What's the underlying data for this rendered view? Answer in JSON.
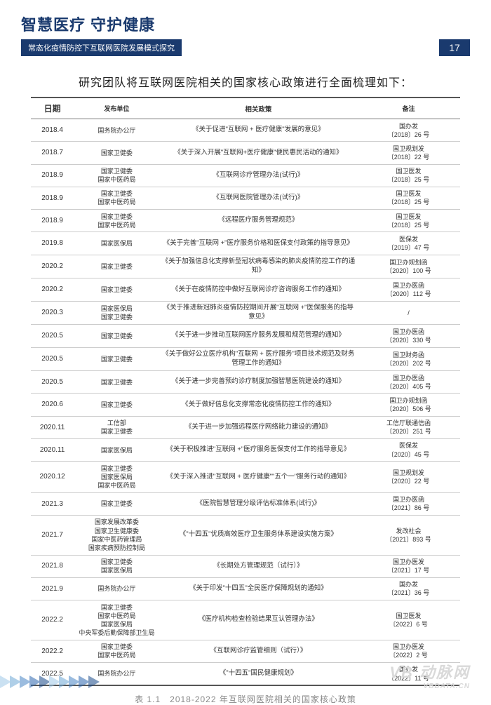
{
  "header": {
    "title": "智慧医疗 守护健康",
    "subtitle": "常态化疫情防控下互联网医院发展模式探究",
    "page_number": "17",
    "colors": {
      "brand": "#1a3a6e",
      "bg": "#ffffff"
    }
  },
  "intro": "研究团队将互联网医院相关的国家核心政策进行全面梳理如下：",
  "table": {
    "columns": [
      "日期",
      "发布单位",
      "相关政策",
      "备注"
    ],
    "rows": [
      [
        "2018.4",
        "国务院办公厅",
        "《关于促进\"互联网 + 医疗健康\"发展的意见》",
        "国办发\n〔2018〕26 号"
      ],
      [
        "2018.7",
        "国家卫健委",
        "《关于深入开展\"互联网+医疗健康\"便民惠民活动的通知》",
        "国卫规划发\n〔2018〕22 号"
      ],
      [
        "2018.9",
        "国家卫健委\n国家中医药局",
        "《互联网诊疗管理办法(试行)》",
        "国卫医发\n〔2018〕25 号"
      ],
      [
        "2018.9",
        "国家卫健委\n国家中医药局",
        "《互联网医院管理办法(试行)》",
        "国卫医发\n〔2018〕25 号"
      ],
      [
        "2018.9",
        "国家卫健委\n国家中医药局",
        "《远程医疗服务管理规范》",
        "国卫医发\n〔2018〕25 号"
      ],
      [
        "2019.8",
        "国家医保局",
        "《关于完善\"互联网 +\"医疗服务价格和医保支付政策的指导意见》",
        "医保发\n〔2019〕47 号"
      ],
      [
        "2020.2",
        "国家卫健委",
        "《关于加强信息化支撑新型冠状病毒感染的肺炎疫情防控工作的通知》",
        "国卫办规划函\n〔2020〕100 号"
      ],
      [
        "2020.2",
        "国家卫健委",
        "《关于在疫情防控中做好互联网诊疗咨询服务工作的通知》",
        "国卫办医函\n〔2020〕112 号"
      ],
      [
        "2020.3",
        "国家医保局\n国家卫健委",
        "《关于推进新冠肺炎疫情防控期间开展\"互联网 +\"医保服务的指导意见》",
        "/"
      ],
      [
        "2020.5",
        "国家卫健委",
        "《关于进一步推动互联网医疗服务发展和规范管理的通知》",
        "国卫办医函\n〔2020〕330 号"
      ],
      [
        "2020.5",
        "国家卫健委",
        "《关于做好公立医疗机构\"互联网 + 医疗服务\"项目技术规范及财务管理工作的通知》",
        "国卫财务函\n〔2020〕202 号"
      ],
      [
        "2020.5",
        "国家卫健委",
        "《关于进一步完善预约诊疗制度加强智慧医院建设的通知》",
        "国卫办医函\n〔2020〕405 号"
      ],
      [
        "2020.6",
        "国家卫健委",
        "《关于做好信息化支撑常态化疫情防控工作的通知》",
        "国卫办规划函\n〔2020〕506 号"
      ],
      [
        "2020.11",
        "工信部\n国家卫健委",
        "《关于进一步加强远程医疗网络能力建设的通知》",
        "工信厅联通信函\n〔2020〕251 号"
      ],
      [
        "2020.11",
        "国家医保局",
        "《关于积极推进\"互联网 +\"医疗服务医保支付工作的指导意见》",
        "医保发\n〔2020〕45 号"
      ],
      [
        "2020.12",
        "国家卫健委\n国家医保局\n国家中医药局",
        "《关于深入推进\"互联网 + 医疗健康\"\"五个一\"服务行动的通知》",
        "国卫规划发\n〔2020〕22 号"
      ],
      [
        "2021.3",
        "国家卫健委",
        "《医院智慧管理分级评估标准体系(试行)》",
        "国卫办医函\n〔2021〕86 号"
      ],
      [
        "2021.7",
        "国家发展改革委\n国家卫生健康委\n国家中医药管理局\n国家疾病预防控制局",
        "《\"十四五\"优质高效医疗卫生服务体系建设实施方案》",
        "发改社会\n〔2021〕893 号"
      ],
      [
        "2021.8",
        "国家卫健委\n国家医保局",
        "《长期处方管理规范（试行）》",
        "国卫办医发\n〔2021〕17 号"
      ],
      [
        "2021.9",
        "国务院办公厅",
        "《关于印发\"十四五\"全民医疗保障规划的通知》",
        "国办发\n〔2021〕36 号"
      ],
      [
        "2022.2",
        "国家卫健委\n国家中医药局\n国家医保局\n中央军委后勤保障部卫生局",
        "《医疗机构检查检验结果互认管理办法》",
        "国卫医发\n〔2022〕6 号"
      ],
      [
        "2022.2",
        "国家卫健委\n国家中医药局",
        "《互联网诊疗监管细则（试行）》",
        "国卫办医发\n〔2022〕2 号"
      ],
      [
        "2022.5",
        "国务院办公厅",
        "《\"十四五\"国民健康规划》",
        "国办发\n〔2022〕11 号"
      ]
    ]
  },
  "caption": "表 1.1　2018-2022 年互联网医院相关的国家核心政策",
  "watermark": {
    "logo": "VB 动脉网",
    "url": "VBDATA.CN"
  },
  "footer_arrows": {
    "colors": [
      "#9fc9e8",
      "#6fa8d6",
      "#4a86c5",
      "#2d68b0",
      "#1a4a8a"
    ]
  }
}
